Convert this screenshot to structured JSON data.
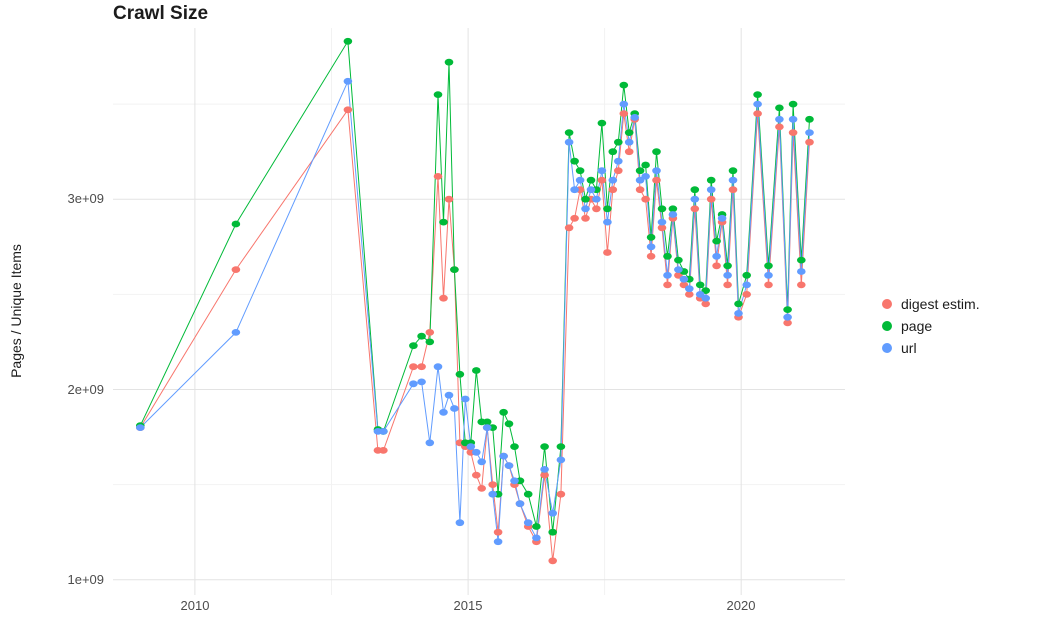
{
  "chart_data": {
    "type": "line",
    "title": "Crawl Size",
    "xlabel": "",
    "ylabel": "Pages / Unique Items",
    "values_unit": "1e+09",
    "xlim": [
      2008.5,
      2021.9
    ],
    "ylim_billions": [
      0.92,
      3.9
    ],
    "grid": true,
    "legend_position": "right",
    "grid_major_color": "#e3e3e3",
    "grid_minor_color": "#f2f2f2",
    "x_ticks": [
      {
        "value": 2010,
        "label": "2010"
      },
      {
        "value": 2015,
        "label": "2015"
      },
      {
        "value": 2020,
        "label": "2020"
      }
    ],
    "y_ticks": [
      {
        "value": 1,
        "label": "1e+09"
      },
      {
        "value": 2,
        "label": "2e+09"
      },
      {
        "value": 3,
        "label": "3e+09"
      }
    ],
    "x_minor": [
      2012.5,
      2017.5
    ],
    "y_minor": [
      1.5,
      2.5,
      3.5
    ],
    "x": [
      2009.0,
      2010.75,
      2012.8,
      2013.35,
      2013.45,
      2014.0,
      2014.15,
      2014.3,
      2014.45,
      2014.55,
      2014.65,
      2014.75,
      2014.85,
      2014.95,
      2015.05,
      2015.15,
      2015.25,
      2015.35,
      2015.45,
      2015.55,
      2015.65,
      2015.75,
      2015.85,
      2015.95,
      2016.1,
      2016.25,
      2016.4,
      2016.55,
      2016.7,
      2016.85,
      2016.95,
      2017.05,
      2017.15,
      2017.25,
      2017.35,
      2017.45,
      2017.55,
      2017.65,
      2017.75,
      2017.85,
      2017.95,
      2018.05,
      2018.15,
      2018.25,
      2018.35,
      2018.45,
      2018.55,
      2018.65,
      2018.75,
      2018.85,
      2018.95,
      2019.05,
      2019.15,
      2019.25,
      2019.35,
      2019.45,
      2019.55,
      2019.65,
      2019.75,
      2019.85,
      2019.95,
      2020.1,
      2020.3,
      2020.5,
      2020.7,
      2020.85,
      2020.95,
      2021.1,
      2021.25
    ],
    "series": [
      {
        "name": "digest estim.",
        "color": "#F8766D",
        "values": [
          1.8,
          2.63,
          3.47,
          1.68,
          1.68,
          2.12,
          2.12,
          2.3,
          3.12,
          2.48,
          3.0,
          2.63,
          1.72,
          1.7,
          1.67,
          1.55,
          1.48,
          1.8,
          1.5,
          1.25,
          1.65,
          1.6,
          1.5,
          1.4,
          1.28,
          1.2,
          1.55,
          1.1,
          1.45,
          2.85,
          2.9,
          3.05,
          2.9,
          3.0,
          2.95,
          3.1,
          2.72,
          3.05,
          3.15,
          3.45,
          3.25,
          3.42,
          3.05,
          3.0,
          2.7,
          3.1,
          2.85,
          2.55,
          2.9,
          2.6,
          2.55,
          2.5,
          2.95,
          2.48,
          2.45,
          3.0,
          2.65,
          2.88,
          2.55,
          3.05,
          2.38,
          2.5,
          3.45,
          2.55,
          3.38,
          2.35,
          3.35,
          2.55,
          3.3
        ]
      },
      {
        "name": "page",
        "color": "#00BA38",
        "values": [
          1.81,
          2.87,
          3.83,
          1.79,
          1.78,
          2.23,
          2.28,
          2.25,
          3.55,
          2.88,
          3.72,
          2.63,
          2.08,
          1.72,
          1.72,
          2.1,
          1.83,
          1.83,
          1.8,
          1.45,
          1.88,
          1.82,
          1.7,
          1.52,
          1.45,
          1.28,
          1.7,
          1.25,
          1.7,
          3.35,
          3.2,
          3.15,
          3.0,
          3.1,
          3.05,
          3.4,
          2.95,
          3.25,
          3.3,
          3.6,
          3.35,
          3.45,
          3.15,
          3.18,
          2.8,
          3.25,
          2.95,
          2.7,
          2.95,
          2.68,
          2.62,
          2.58,
          3.05,
          2.55,
          2.52,
          3.1,
          2.78,
          2.92,
          2.65,
          3.15,
          2.45,
          2.6,
          3.55,
          2.65,
          3.48,
          2.42,
          3.5,
          2.68,
          3.42
        ]
      },
      {
        "name": "url",
        "color": "#619CFF",
        "values": [
          1.8,
          2.3,
          3.62,
          1.78,
          1.78,
          2.03,
          2.04,
          1.72,
          2.12,
          1.88,
          1.97,
          1.9,
          1.3,
          1.95,
          1.7,
          1.67,
          1.62,
          1.8,
          1.45,
          1.2,
          1.65,
          1.6,
          1.52,
          1.4,
          1.3,
          1.22,
          1.58,
          1.35,
          1.63,
          3.3,
          3.05,
          3.1,
          2.95,
          3.05,
          3.0,
          3.15,
          2.88,
          3.1,
          3.2,
          3.5,
          3.3,
          3.43,
          3.1,
          3.12,
          2.75,
          3.15,
          2.88,
          2.6,
          2.92,
          2.63,
          2.58,
          2.53,
          3.0,
          2.5,
          2.48,
          3.05,
          2.7,
          2.9,
          2.6,
          3.1,
          2.4,
          2.55,
          3.5,
          2.6,
          3.42,
          2.38,
          3.42,
          2.62,
          3.35
        ]
      }
    ]
  }
}
